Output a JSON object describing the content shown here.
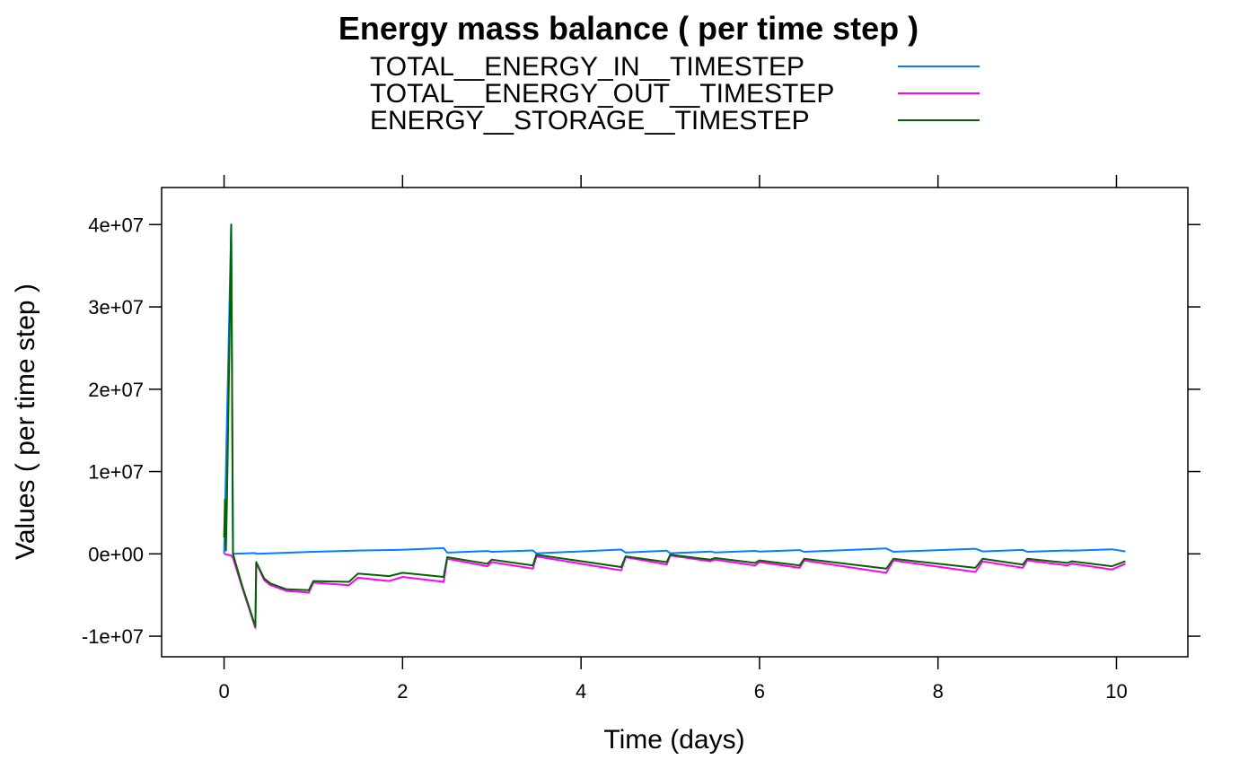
{
  "chart_data": {
    "type": "line",
    "title": "Energy mass balance ( per time step )",
    "xlabel": "Time (days)",
    "ylabel": "Values ( per time step )",
    "xlim": [
      -0.7,
      10.8
    ],
    "ylim": [
      -12500000,
      44500000
    ],
    "x_ticks": [
      0,
      2,
      4,
      6,
      8,
      10
    ],
    "x_tick_labels": [
      "0",
      "2",
      "4",
      "6",
      "8",
      "10"
    ],
    "y_ticks": [
      -10000000,
      0,
      10000000,
      20000000,
      30000000,
      40000000
    ],
    "y_tick_labels": [
      "-1e+07",
      "0e+00",
      "1e+07",
      "2e+07",
      "3e+07",
      "4e+07"
    ],
    "legend_position": "top",
    "series": [
      {
        "name": "TOTAL__ENERGY_IN__TIMESTEP",
        "color": "#0080ff",
        "points": [
          [
            0,
            0
          ],
          [
            0.08,
            40000000
          ],
          [
            0.1,
            0
          ],
          [
            0.35,
            100000
          ],
          [
            0.36,
            0
          ],
          [
            1.0,
            250000
          ],
          [
            1.5,
            400000
          ],
          [
            2.0,
            500000
          ],
          [
            2.46,
            700000
          ],
          [
            2.5,
            150000
          ],
          [
            2.95,
            350000
          ],
          [
            3.0,
            250000
          ],
          [
            3.46,
            420000
          ],
          [
            3.5,
            50000
          ],
          [
            4.45,
            520000
          ],
          [
            4.5,
            150000
          ],
          [
            4.96,
            380000
          ],
          [
            5.0,
            80000
          ],
          [
            5.45,
            280000
          ],
          [
            5.5,
            180000
          ],
          [
            5.95,
            360000
          ],
          [
            6.0,
            280000
          ],
          [
            6.45,
            460000
          ],
          [
            6.5,
            250000
          ],
          [
            7.42,
            650000
          ],
          [
            7.5,
            250000
          ],
          [
            8.42,
            620000
          ],
          [
            8.5,
            300000
          ],
          [
            8.95,
            480000
          ],
          [
            9.0,
            250000
          ],
          [
            9.45,
            420000
          ],
          [
            9.5,
            380000
          ],
          [
            9.95,
            560000
          ],
          [
            10.1,
            300000
          ]
        ]
      },
      {
        "name": "TOTAL__ENERGY_OUT__TIMESTEP",
        "color": "#ff00ff",
        "points": [
          [
            0,
            0
          ],
          [
            0.08,
            -200000
          ],
          [
            0.1,
            -500000
          ],
          [
            0.2,
            -4000000
          ],
          [
            0.35,
            -9000000
          ],
          [
            0.36,
            -1100000
          ],
          [
            0.45,
            -3200000
          ],
          [
            0.52,
            -3800000
          ],
          [
            0.7,
            -4500000
          ],
          [
            0.95,
            -4700000
          ],
          [
            1.0,
            -3500000
          ],
          [
            1.4,
            -3800000
          ],
          [
            1.5,
            -2900000
          ],
          [
            1.85,
            -3300000
          ],
          [
            2.0,
            -2800000
          ],
          [
            2.46,
            -3400000
          ],
          [
            2.5,
            -600000
          ],
          [
            2.95,
            -1500000
          ],
          [
            3.0,
            -1000000
          ],
          [
            3.46,
            -1800000
          ],
          [
            3.5,
            -300000
          ],
          [
            4.45,
            -2000000
          ],
          [
            4.5,
            -400000
          ],
          [
            4.96,
            -1300000
          ],
          [
            5.0,
            -200000
          ],
          [
            5.45,
            -900000
          ],
          [
            5.5,
            -700000
          ],
          [
            5.95,
            -1400000
          ],
          [
            6.0,
            -1000000
          ],
          [
            6.45,
            -1700000
          ],
          [
            6.5,
            -800000
          ],
          [
            7.42,
            -2300000
          ],
          [
            7.5,
            -800000
          ],
          [
            8.42,
            -2200000
          ],
          [
            8.5,
            -900000
          ],
          [
            8.95,
            -1700000
          ],
          [
            9.0,
            -800000
          ],
          [
            9.45,
            -1400000
          ],
          [
            9.5,
            -1200000
          ],
          [
            9.95,
            -1900000
          ],
          [
            10.1,
            -1200000
          ]
        ]
      },
      {
        "name": "ENERGY__STORAGE__TIMESTEP",
        "color": "#006400",
        "points": [
          [
            0,
            2000000
          ],
          [
            0.01,
            6600000
          ],
          [
            0.02,
            400000
          ],
          [
            0.03,
            5500000
          ],
          [
            0.06,
            25000000
          ],
          [
            0.08,
            40000000
          ],
          [
            0.1,
            0
          ],
          [
            0.2,
            -3800000
          ],
          [
            0.35,
            -8800000
          ],
          [
            0.36,
            -1000000
          ],
          [
            0.45,
            -3000000
          ],
          [
            0.52,
            -3600000
          ],
          [
            0.7,
            -4300000
          ],
          [
            0.95,
            -4400000
          ],
          [
            1.0,
            -3300000
          ],
          [
            1.4,
            -3400000
          ],
          [
            1.5,
            -2400000
          ],
          [
            1.85,
            -2700000
          ],
          [
            2.0,
            -2300000
          ],
          [
            2.46,
            -2800000
          ],
          [
            2.5,
            -400000
          ],
          [
            2.95,
            -1200000
          ],
          [
            3.0,
            -700000
          ],
          [
            3.46,
            -1400000
          ],
          [
            3.5,
            -100000
          ],
          [
            4.45,
            -1600000
          ],
          [
            4.5,
            -300000
          ],
          [
            4.96,
            -1000000
          ],
          [
            5.0,
            -100000
          ],
          [
            5.45,
            -700000
          ],
          [
            5.5,
            -500000
          ],
          [
            5.95,
            -1100000
          ],
          [
            6.0,
            -800000
          ],
          [
            6.45,
            -1400000
          ],
          [
            6.5,
            -600000
          ],
          [
            7.42,
            -1800000
          ],
          [
            7.5,
            -600000
          ],
          [
            8.42,
            -1700000
          ],
          [
            8.5,
            -600000
          ],
          [
            8.95,
            -1300000
          ],
          [
            9.0,
            -600000
          ],
          [
            9.45,
            -1100000
          ],
          [
            9.5,
            -900000
          ],
          [
            9.95,
            -1500000
          ],
          [
            10.1,
            -900000
          ]
        ]
      }
    ]
  }
}
